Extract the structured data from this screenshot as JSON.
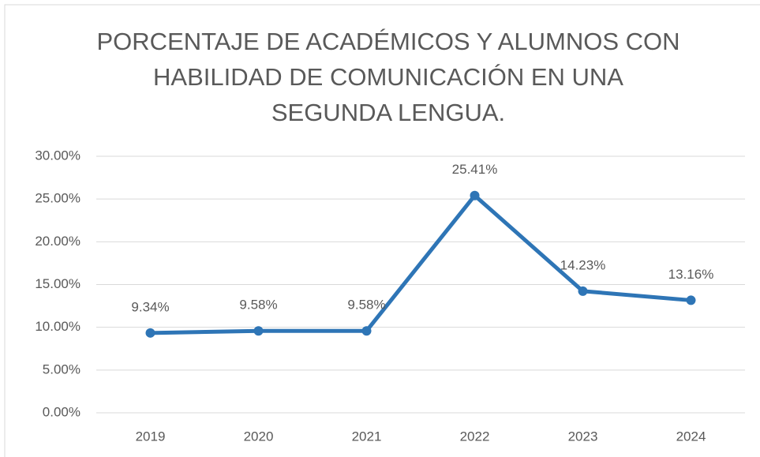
{
  "chart_data": {
    "type": "line",
    "title": [
      "PORCENTAJE DE ACADÉMICOS Y ALUMNOS CON",
      "HABILIDAD DE COMUNICACIÓN EN UNA",
      "SEGUNDA LENGUA."
    ],
    "categories": [
      "2019",
      "2020",
      "2021",
      "2022",
      "2023",
      "2024"
    ],
    "values": [
      9.34,
      9.58,
      9.58,
      25.41,
      14.23,
      13.16
    ],
    "value_labels": [
      "9.34%",
      "9.58%",
      "9.58%",
      "25.41%",
      "14.23%",
      "13.16%"
    ],
    "color": "#2e75b6",
    "ylim": [
      0,
      30
    ],
    "yticks": [
      {
        "value": 0,
        "label": "0.00%"
      },
      {
        "value": 5,
        "label": "5.00%"
      },
      {
        "value": 10,
        "label": "10.00%"
      },
      {
        "value": 15,
        "label": "15.00%"
      },
      {
        "value": 20,
        "label": "20.00%"
      },
      {
        "value": 25,
        "label": "25.00%"
      },
      {
        "value": 30,
        "label": "30.00%"
      }
    ],
    "grid": true
  }
}
